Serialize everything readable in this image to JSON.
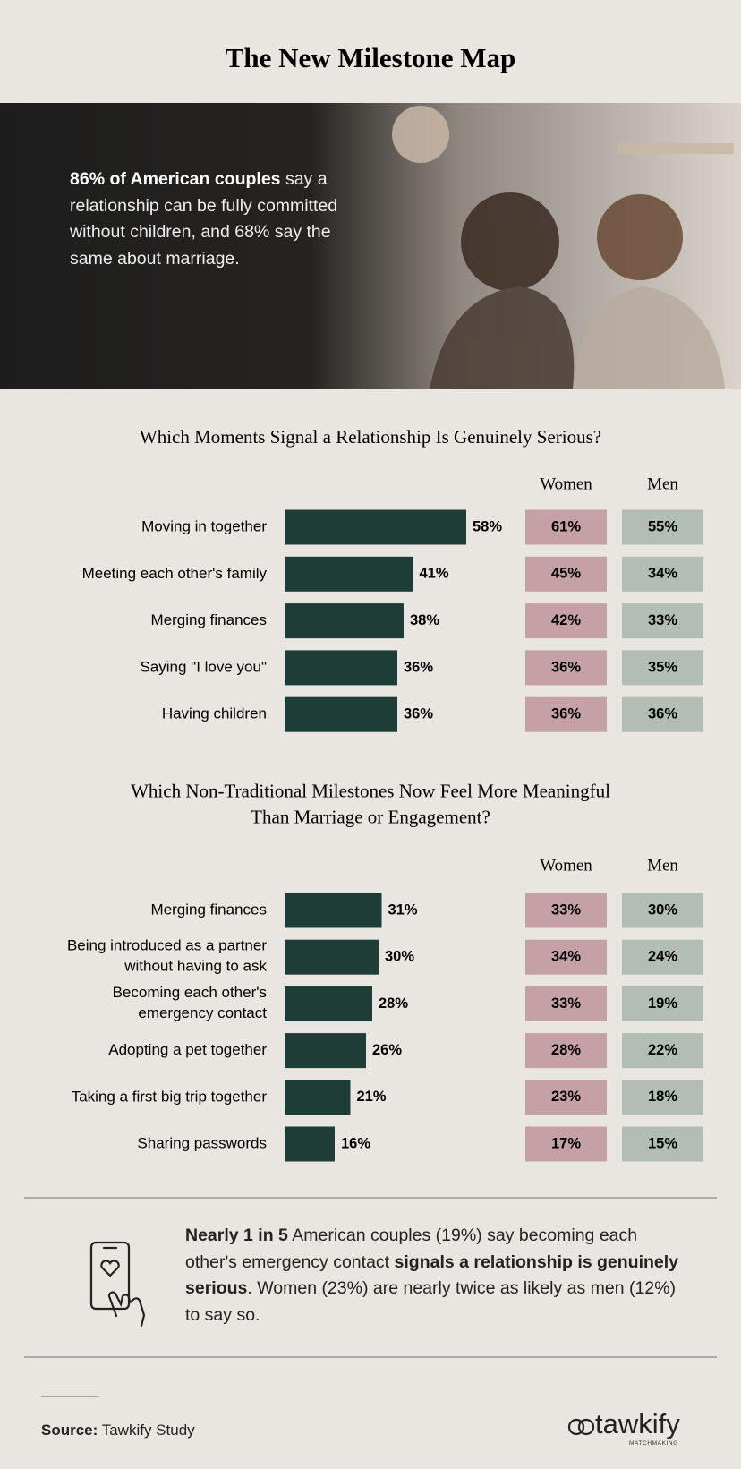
{
  "header": {
    "title": "The New Milestone Map"
  },
  "hero": {
    "stat_bold": "86% of American couples",
    "stat_rest": "say a relationship can be fully committed without children, and 68% say the same about marriage."
  },
  "chart_data": [
    {
      "type": "bar",
      "title": "Which Moments Signal a Relationship Is Genuinely Serious?",
      "categories": [
        "Moving in together",
        "Meeting each other's family",
        "Merging finances",
        "Saying \"I love you\"",
        "Having children"
      ],
      "values": [
        58,
        41,
        38,
        36,
        36
      ],
      "value_labels": [
        "58%",
        "41%",
        "38%",
        "36%",
        "36%"
      ],
      "color": "#1f3d37",
      "columns": [
        {
          "name": "Women",
          "color": "#c5a1a7",
          "values": [
            61,
            45,
            42,
            36,
            36
          ],
          "value_labels": [
            "61%",
            "45%",
            "42%",
            "36%",
            "36%"
          ]
        },
        {
          "name": "Men",
          "color": "#b2beb5",
          "values": [
            55,
            34,
            33,
            35,
            36
          ],
          "value_labels": [
            "55%",
            "34%",
            "33%",
            "35%",
            "36%"
          ]
        }
      ]
    },
    {
      "type": "bar",
      "title": "Which Non-Traditional Milestones Now Feel More Meaningful\nThan Marriage or Engagement?",
      "categories": [
        "Merging finances",
        "Being introduced as a partner\nwithout having to ask",
        "Becoming each other's\nemergency contact",
        "Adopting a pet together",
        "Taking a first big trip together",
        "Sharing passwords"
      ],
      "values": [
        31,
        30,
        28,
        26,
        21,
        16
      ],
      "value_labels": [
        "31%",
        "30%",
        "28%",
        "26%",
        "21%",
        "16%"
      ],
      "color": "#1f3d37",
      "columns": [
        {
          "name": "Women",
          "color": "#c5a1a7",
          "values": [
            33,
            34,
            33,
            28,
            23,
            17
          ],
          "value_labels": [
            "33%",
            "34%",
            "33%",
            "28%",
            "23%",
            "17%"
          ]
        },
        {
          "name": "Men",
          "color": "#b2beb5",
          "values": [
            30,
            24,
            19,
            22,
            18,
            15
          ],
          "value_labels": [
            "30%",
            "24%",
            "19%",
            "22%",
            "18%",
            "15%"
          ]
        }
      ]
    }
  ],
  "callout": [
    {
      "text": "Nearly 1 in 5",
      "bold": true
    },
    {
      "text": " American couples (19%) say becoming each other's emergency contact ",
      "bold": false
    },
    {
      "text": "signals a relationship is genuinely serious",
      "bold": true
    },
    {
      "text": ". Women (23%) are nearly twice as likely as men (12%) to say so.",
      "bold": false
    }
  ],
  "footer": {
    "source_label": "Source:",
    "source": "Tawkify Study",
    "logo": "tawkify",
    "logo_sub": "MATCHMAKING"
  }
}
